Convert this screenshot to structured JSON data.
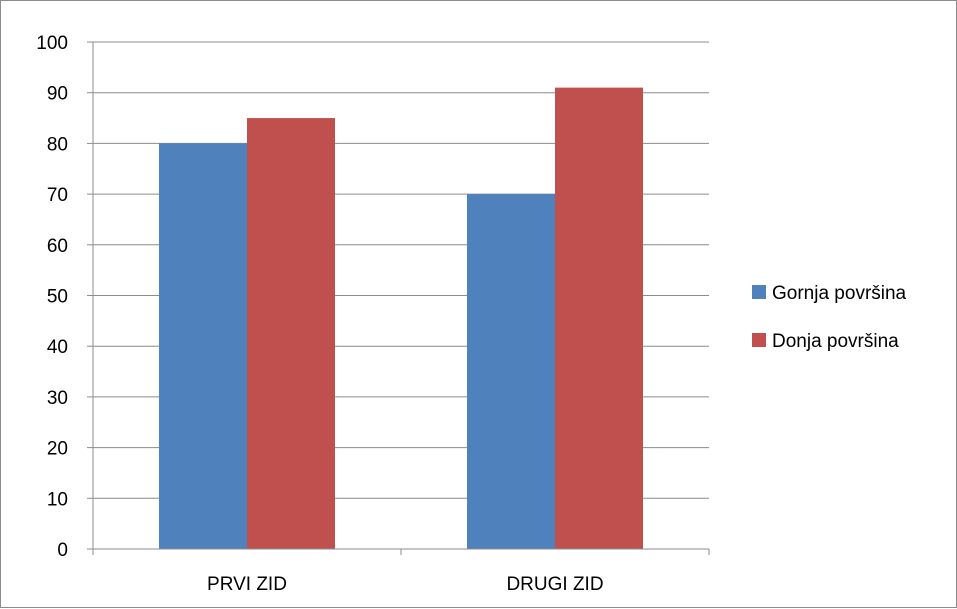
{
  "chart_data": {
    "type": "bar",
    "title": "",
    "xlabel": "",
    "ylabel": "",
    "categories": [
      "PRVI ZID",
      "DRUGI ZID"
    ],
    "series": [
      {
        "name": "Gornja površina",
        "color": "#4f81bd",
        "values": [
          80,
          70
        ]
      },
      {
        "name": "Donja površina",
        "color": "#c0504d",
        "values": [
          85,
          91
        ]
      }
    ],
    "ylim": [
      0,
      100
    ],
    "yticks": [
      "0",
      "10",
      "20",
      "30",
      "40",
      "50",
      "60",
      "70",
      "80",
      "90",
      "100"
    ],
    "grid": true,
    "legend_position": "right"
  }
}
